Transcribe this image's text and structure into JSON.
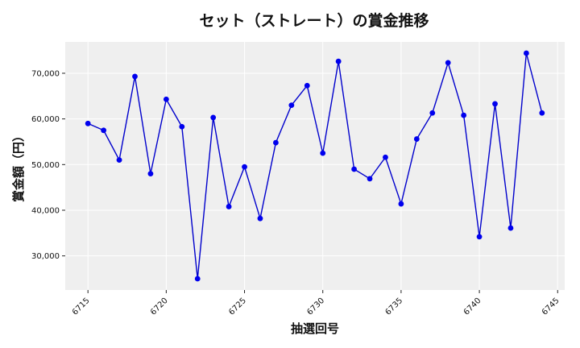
{
  "chart_data": {
    "type": "line",
    "title": "セット（ストレート）の賞金推移",
    "xlabel": "抽選回号",
    "ylabel": "賞金額（円）",
    "x": [
      6715,
      6716,
      6717,
      6718,
      6719,
      6720,
      6721,
      6722,
      6723,
      6724,
      6725,
      6726,
      6727,
      6728,
      6729,
      6730,
      6731,
      6732,
      6733,
      6734,
      6735,
      6736,
      6737,
      6738,
      6739,
      6740,
      6741,
      6742,
      6743,
      6744
    ],
    "series": [
      {
        "values": [
          59000,
          57500,
          51000,
          69300,
          48000,
          64300,
          58300,
          25000,
          60300,
          40800,
          49500,
          38200,
          54800,
          63000,
          67300,
          52500,
          72600,
          49000,
          46900,
          51600,
          41400,
          55600,
          61300,
          72300,
          60800,
          34200,
          63300,
          36100,
          74400,
          61300
        ]
      }
    ],
    "xticks": [
      6715,
      6720,
      6725,
      6730,
      6735,
      6740,
      6745
    ],
    "xtick_labels": [
      "6715",
      "6720",
      "6725",
      "6730",
      "6735",
      "6740",
      "6745"
    ],
    "yticks": [
      30000,
      40000,
      50000,
      60000,
      70000
    ],
    "ytick_labels": [
      "30,000",
      "40,000",
      "50,000",
      "60,000",
      "70,000"
    ],
    "xlim": [
      6713.55,
      6745.45
    ],
    "ylim": [
      22530,
      76870
    ],
    "grid": true,
    "colors": {
      "line": "#0000cc",
      "marker": "#0000ee",
      "plot_bg": "#efefef",
      "grid": "#ffffff"
    }
  }
}
